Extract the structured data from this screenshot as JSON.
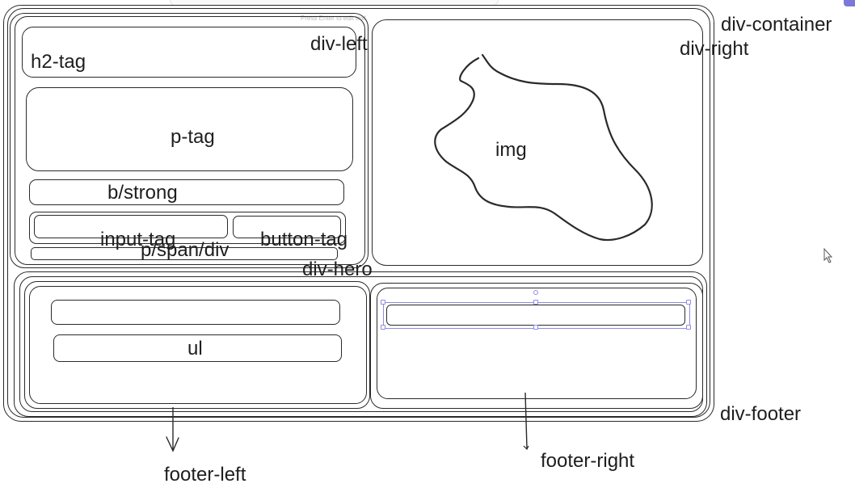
{
  "labels": {
    "h2": "h2-tag",
    "div_left": "div-left",
    "div_container": "div-container",
    "div_right": "div-right",
    "p": "p-tag",
    "strong": "b/strong",
    "input": "input-tag",
    "button": "button-tag",
    "span": "p/span/div",
    "div_hero": "div-hero",
    "img": "img",
    "ul": "ul",
    "div_footer": "div-footer",
    "footer_left": "footer-left",
    "footer_right": "footer-right"
  },
  "canvas_hint": "Press Enter to edit text",
  "colors": {
    "stroke": "#2a2a2a",
    "selection": "#8f8ce0",
    "text": "#1e1e1e"
  }
}
